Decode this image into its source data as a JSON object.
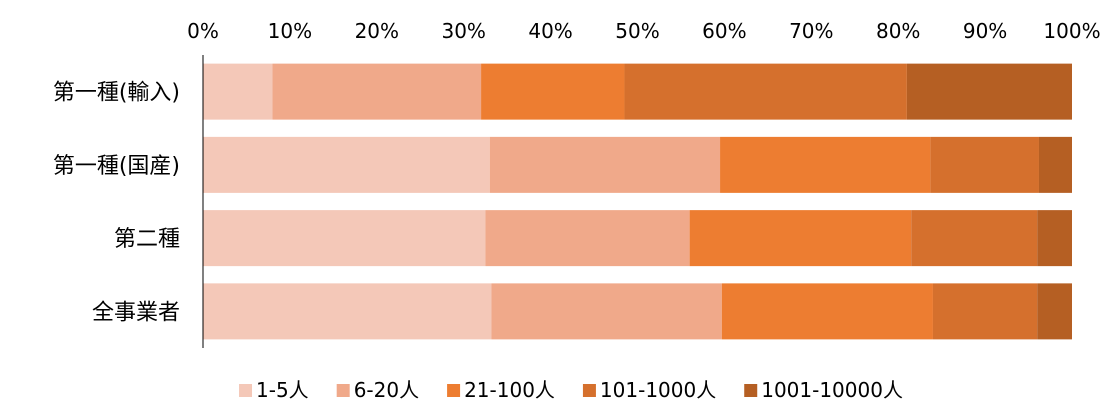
{
  "chart_data": {
    "type": "bar",
    "orientation": "horizontal",
    "stacked": "percent",
    "categories": [
      "第一種(輸入)",
      "第一種(国産)",
      "第二種",
      "全事業者"
    ],
    "series": [
      {
        "name": "1-5人",
        "values": [
          8,
          33,
          32.5,
          33.2
        ],
        "color": "#F4C8B8"
      },
      {
        "name": "6-20人",
        "values": [
          24,
          26.5,
          23.5,
          26.5
        ],
        "color": "#F0A98A"
      },
      {
        "name": "21-100人",
        "values": [
          16.5,
          24.2,
          25.5,
          24.3
        ],
        "color": "#ED7D31"
      },
      {
        "name": "101-1000人",
        "values": [
          32.5,
          12.5,
          14.5,
          12
        ],
        "color": "#D5702D"
      },
      {
        "name": "1001-10000人",
        "values": [
          19,
          3.8,
          4,
          4
        ],
        "color": "#B55F23"
      }
    ],
    "xlim": [
      0,
      100
    ],
    "x_ticks": [
      "0%",
      "10%",
      "20%",
      "30%",
      "40%",
      "50%",
      "60%",
      "70%",
      "80%",
      "90%",
      "100%"
    ],
    "grid": false,
    "legend_position": "bottom"
  }
}
